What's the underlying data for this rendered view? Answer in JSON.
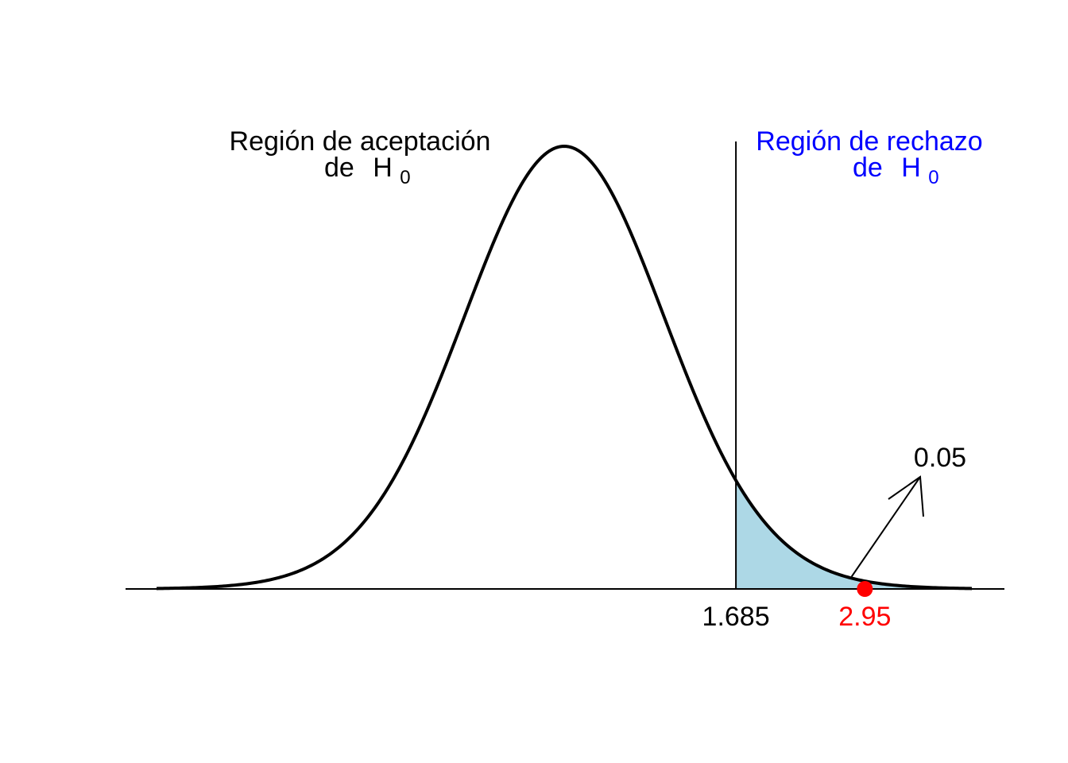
{
  "chart_data": {
    "type": "area",
    "distribution": "t",
    "degrees_of_freedom": 40,
    "xlim": [
      -4,
      4
    ],
    "critical_value": 1.685,
    "critical_label": "1.685",
    "observed_value": 2.95,
    "observed_label": "2.95",
    "alpha_label": "0.05",
    "acceptance": {
      "line1": "Región de aceptación",
      "line2": "de",
      "hyp": "H",
      "sub": "0"
    },
    "rejection": {
      "line1": "Región de rechazo",
      "line2": "de",
      "hyp": "H",
      "sub": "0"
    },
    "colors": {
      "curve": "#000000",
      "shade": "#add8e6",
      "observed": "#ff0000",
      "rejection_text": "#0000ff",
      "acceptance_text": "#000000"
    }
  }
}
